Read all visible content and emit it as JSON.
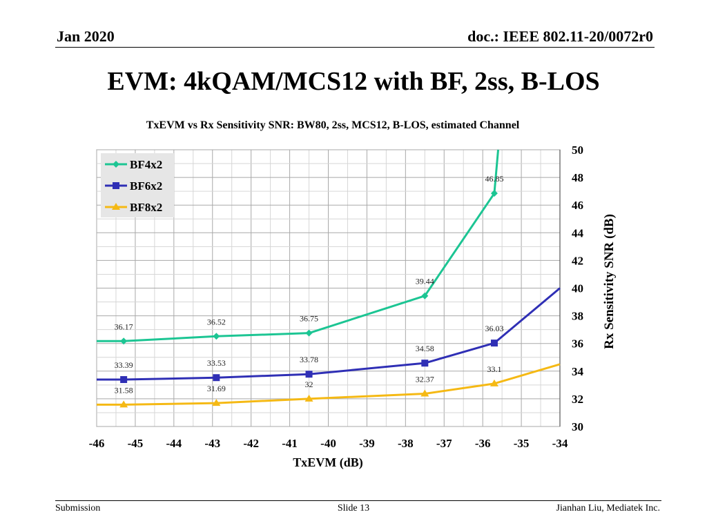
{
  "header": {
    "date": "Jan 2020",
    "doc": "doc.: IEEE 802.11-20/0072r0"
  },
  "slide_title": "EVM: 4kQAM/MCS12 with BF, 2ss, B-LOS",
  "footer": {
    "left": "Submission",
    "center": "Slide 13",
    "right": "Jianhan Liu, Mediatek Inc."
  },
  "chart_data": {
    "type": "line",
    "title": "TxEVM vs Rx Sensitivity SNR:  BW80, 2ss, MCS12, B-LOS, estimated Channel",
    "xlabel": "TxEVM  (dB)",
    "ylabel": "Rx Sensitivity SNR (dB)",
    "xlim": [
      -46,
      -34
    ],
    "ylim": [
      30,
      50
    ],
    "x_ticks": [
      -46,
      -45,
      -44,
      -43,
      -42,
      -41,
      -40,
      -39,
      -38,
      -37,
      -36,
      -35,
      -34
    ],
    "y_ticks": [
      30,
      32,
      34,
      36,
      38,
      40,
      42,
      44,
      46,
      48,
      50
    ],
    "y_axis_side": "right",
    "grid": true,
    "legend_position": "top-left",
    "series": [
      {
        "name": "BF4x2",
        "color": "#1cc593",
        "marker": "diamond",
        "x": [
          -46,
          -45.3,
          -42.9,
          -40.5,
          -37.5,
          -35.7,
          -35.6
        ],
        "y": [
          36.17,
          36.17,
          36.52,
          36.75,
          39.44,
          46.85,
          50
        ],
        "labels": [
          null,
          "36.17",
          "36.52",
          "36.75",
          "39.44",
          "46.85",
          null
        ]
      },
      {
        "name": "BF6x2",
        "color": "#2f2fb5",
        "marker": "square",
        "x": [
          -46,
          -45.3,
          -42.9,
          -40.5,
          -37.5,
          -35.7,
          -34
        ],
        "y": [
          33.39,
          33.39,
          33.53,
          33.78,
          34.58,
          36.03,
          40.0
        ],
        "labels": [
          null,
          "33.39",
          "33.53",
          "33.78",
          "34.58",
          "36.03",
          null
        ]
      },
      {
        "name": "BF8x2",
        "color": "#f5b914",
        "marker": "triangle",
        "x": [
          -46,
          -45.3,
          -42.9,
          -40.5,
          -37.5,
          -35.7,
          -34
        ],
        "y": [
          31.58,
          31.58,
          31.69,
          32.0,
          32.37,
          33.1,
          34.5
        ],
        "labels": [
          null,
          "31.58",
          "31.69",
          "32",
          "32.37",
          "33.1",
          null
        ]
      }
    ]
  }
}
